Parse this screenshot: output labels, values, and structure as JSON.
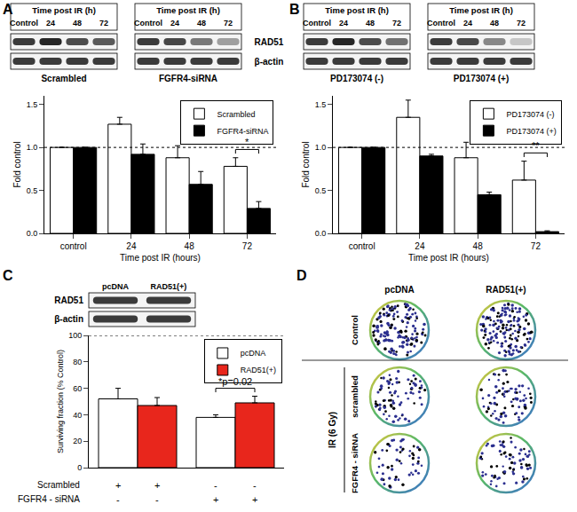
{
  "chart_data": [
    {
      "type": "bar",
      "categories": [
        "control",
        "24",
        "48",
        "72"
      ],
      "xlabel": "Time post IR (hours)",
      "ylabel": "Fold control",
      "ylim": [
        0,
        1.6
      ],
      "yticks": [
        {
          "value": 0,
          "label": "0.0"
        },
        0.5,
        {
          "value": 1,
          "label": "1.0"
        },
        1.5
      ],
      "grid": false,
      "legend": "upper right",
      "series": [
        {
          "name": "Scrambled",
          "color": "#ffffff",
          "values": [
            1,
            1.27,
            0.88,
            0.78
          ],
          "errors": [
            0,
            0.08,
            0.14,
            0.1
          ]
        },
        {
          "name": "FGFR4-siRNA",
          "color": "#000000",
          "values": [
            1,
            0.92,
            0.57,
            0.29
          ],
          "errors": [
            0,
            0.12,
            0.15,
            0.08
          ]
        }
      ],
      "reference_line": 1,
      "annotations": [
        {
          "text": "*",
          "category": "72"
        }
      ]
    },
    {
      "type": "bar",
      "categories": [
        "control",
        "24",
        "48",
        "72"
      ],
      "xlabel": "Time post IR (hours)",
      "ylabel": "Fold control",
      "ylim": [
        0,
        1.6
      ],
      "yticks": [
        {
          "value": 0,
          "label": "0.0"
        },
        0.5,
        {
          "value": 1,
          "label": "1.0"
        },
        1.5
      ],
      "grid": false,
      "legend": "upper right",
      "series": [
        {
          "name": "PD173074 (-)",
          "color": "#ffffff",
          "values": [
            1,
            1.35,
            0.88,
            0.62
          ],
          "errors": [
            0,
            0.2,
            0.18,
            0.22
          ]
        },
        {
          "name": "PD173074 (+)",
          "color": "#000000",
          "values": [
            1,
            0.9,
            0.45,
            0.02
          ],
          "errors": [
            0,
            0.02,
            0.03,
            0.01
          ]
        }
      ],
      "reference_line": 1,
      "annotations": [
        {
          "text": "**",
          "category": "72"
        }
      ]
    },
    {
      "type": "bar",
      "categories": [
        null,
        null
      ],
      "ylabel": "Surviving fraction (% Control)",
      "ylim": [
        0,
        100
      ],
      "yticks": [
        0,
        20,
        40,
        60,
        80,
        100
      ],
      "grid": false,
      "legend": "upper right",
      "tick_labels": "y",
      "series": [
        {
          "name": "pcDNA",
          "color": "#ffffff",
          "values": [
            52,
            38
          ],
          "errors": [
            8,
            2
          ]
        },
        {
          "name": "RAD51(+)",
          "color": "#e8261c",
          "values": [
            47,
            49
          ],
          "errors": [
            6,
            5
          ]
        }
      ],
      "reference_line": 100,
      "annotations": [
        {
          "text": "*p=0.02",
          "position": 1
        }
      ],
      "condition_table": [
        {
          "label": "Scrambled",
          "marks": [
            "+",
            "+",
            "-",
            "-"
          ]
        },
        {
          "label": "FGFR4 - siRNA",
          "marks": [
            "-",
            "-",
            "+",
            "+"
          ]
        }
      ]
    }
  ],
  "panel_labels": [
    "A",
    "B",
    "C",
    "D"
  ],
  "blot_panels": [
    {
      "row_labels": [
        "RAD51",
        "β-actin"
      ],
      "blots": [
        {
          "header": "Time post IR (h)",
          "lanes": [
            "Control",
            "24",
            "48",
            "72"
          ],
          "caption": "Scrambled"
        },
        {
          "header": "Time post IR (h)",
          "lanes": [
            "Control",
            "24",
            "48",
            "72"
          ],
          "caption": "FGFR4-siRNA"
        }
      ]
    },
    {
      "blots": [
        {
          "header": "Time post IR (h)",
          "lanes": [
            "Control",
            "24",
            "48",
            "72"
          ],
          "caption": "PD173074 (-)"
        },
        {
          "header": "Time post IR (h)",
          "lanes": [
            "Control",
            "24",
            "48",
            "72"
          ],
          "caption": "PD173074 (+)"
        }
      ]
    },
    {
      "row_labels": [
        "RAD51",
        "β-actin"
      ],
      "blots": [
        {
          "lanes": [
            "pcDNA",
            "RAD51(+)"
          ]
        }
      ]
    }
  ],
  "colony_assay": {
    "columns": [
      "pcDNA",
      "RAD51(+)"
    ],
    "rows": [
      {
        "label": "Control",
        "colonies": [
          150,
          150
        ]
      },
      {
        "label": "scrambled",
        "group": "IR (6 Gy)",
        "colonies": [
          80,
          75
        ]
      },
      {
        "label": "FGFR4 - siRNA",
        "group": "IR (6 Gy)",
        "colonies": [
          55,
          75
        ]
      }
    ]
  }
}
